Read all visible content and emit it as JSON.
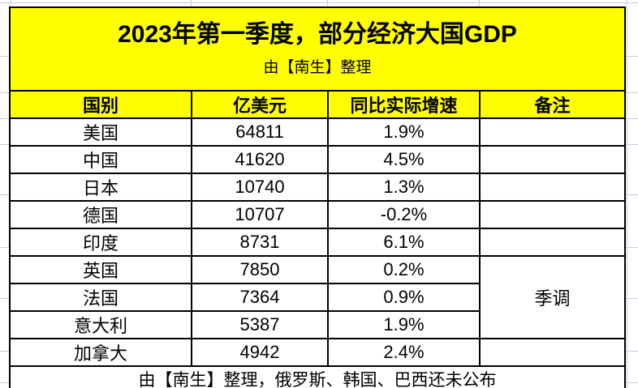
{
  "chart_data": {
    "type": "table",
    "title": "2023年第一季度，部分经济大国GDP",
    "subtitle": "由【南生】整理",
    "columns": [
      "国别",
      "亿美元",
      "同比实际增速",
      "备注"
    ],
    "rows": [
      {
        "country": "美国",
        "gdp_100m_usd": "64811",
        "yoy_real_growth": "1.9%",
        "note": ""
      },
      {
        "country": "中国",
        "gdp_100m_usd": "41620",
        "yoy_real_growth": "4.5%",
        "note": ""
      },
      {
        "country": "日本",
        "gdp_100m_usd": "10740",
        "yoy_real_growth": "1.3%",
        "note": ""
      },
      {
        "country": "德国",
        "gdp_100m_usd": "10707",
        "yoy_real_growth": "-0.2%",
        "note": ""
      },
      {
        "country": "印度",
        "gdp_100m_usd": "8731",
        "yoy_real_growth": "6.1%",
        "note": ""
      },
      {
        "country": "英国",
        "gdp_100m_usd": "7850",
        "yoy_real_growth": "0.2%",
        "note": "季调",
        "note_rowspan": 3
      },
      {
        "country": "法国",
        "gdp_100m_usd": "7364",
        "yoy_real_growth": "0.9%",
        "note": null
      },
      {
        "country": "意大利",
        "gdp_100m_usd": "5387",
        "yoy_real_growth": "1.9%",
        "note": null
      },
      {
        "country": "加拿大",
        "gdp_100m_usd": "4942",
        "yoy_real_growth": "2.4%",
        "note": ""
      }
    ],
    "merged_note": {
      "label": "季调",
      "applies_to": [
        "英国",
        "法国",
        "意大利"
      ]
    },
    "footer": "由【南生】整理，俄罗斯、韩国、巴西还未公布"
  },
  "colors": {
    "highlight_yellow": "#FFFF00",
    "table_border": "#000000",
    "text": "#000000",
    "excel_gridline": "#C3CDE0",
    "background": "#FFFFFF"
  }
}
